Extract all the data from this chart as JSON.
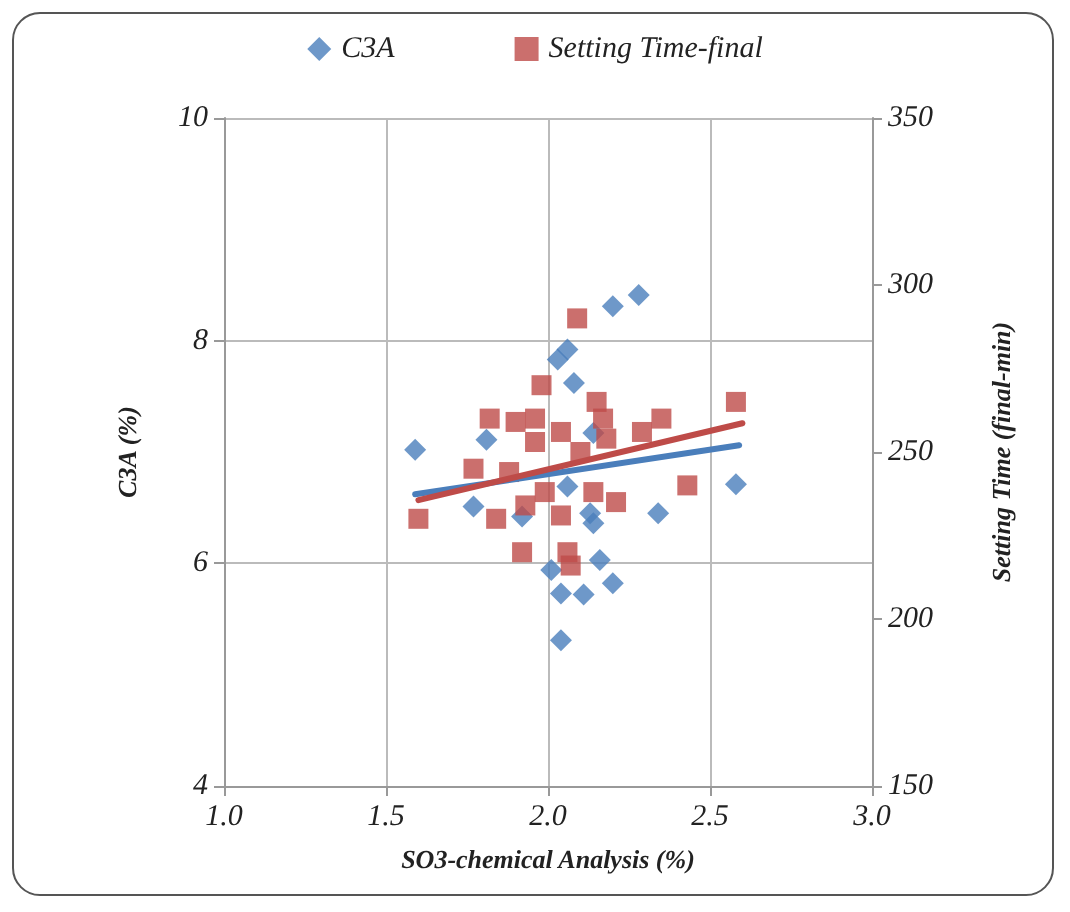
{
  "chart_data": {
    "type": "scatter",
    "xlabel": "SO3-chemical Analysis (%)",
    "ylabel": "C3A (%)",
    "y2label": "Setting Time (final-min)",
    "xlim": [
      1,
      3
    ],
    "xticks": [
      {
        "value": 1,
        "label": "1.0"
      },
      {
        "value": 1.5,
        "label": "1.5"
      },
      {
        "value": 2,
        "label": "2.0"
      },
      {
        "value": 2.5,
        "label": "2.5"
      },
      {
        "value": 3,
        "label": "3.0"
      }
    ],
    "ylim": [
      4,
      10
    ],
    "yticks": [
      4,
      6,
      8,
      10
    ],
    "y2lim": [
      150,
      350
    ],
    "y2ticks": [
      150,
      200,
      250,
      300,
      350
    ],
    "grid": true,
    "legend": "top",
    "series": [
      {
        "name": "C3A",
        "marker": "diamond",
        "color": "#4a7ebb",
        "x": [
          1.59,
          1.77,
          1.81,
          1.92,
          2.01,
          2.04,
          2.04,
          2.11,
          2.16,
          2.2,
          2.14,
          2.13,
          2.34,
          2.58,
          2.03,
          2.06,
          2.08,
          2.2,
          2.28,
          2.06,
          2.14
        ],
        "values": [
          7.02,
          6.51,
          7.11,
          6.42,
          5.94,
          5.73,
          5.31,
          5.72,
          6.03,
          5.82,
          6.36,
          6.45,
          6.45,
          6.71,
          7.83,
          7.92,
          7.62,
          8.31,
          8.41,
          6.69,
          7.17
        ]
      },
      {
        "name": "Setting Time-final",
        "marker": "square",
        "axis": "y2",
        "color": "#be4b48",
        "x": [
          1.6,
          1.77,
          1.82,
          1.84,
          1.92,
          1.9,
          1.96,
          1.98,
          1.96,
          1.99,
          2.04,
          2.04,
          2.06,
          2.07,
          2.09,
          2.1,
          2.14,
          2.15,
          2.17,
          2.18,
          2.21,
          2.29,
          2.35,
          2.43,
          2.58,
          1.93,
          1.88
        ],
        "values": [
          230,
          245,
          260,
          230,
          220,
          259,
          260,
          270,
          253,
          238,
          256,
          231,
          220,
          216,
          290,
          250,
          238,
          265,
          260,
          254,
          235,
          256,
          260,
          240,
          265,
          234,
          244
        ]
      },
      {
        "type": "line",
        "marker": "none",
        "line_style": "solid",
        "color": "#4a7ebb",
        "x": [
          1.59,
          2.59
        ],
        "values": [
          6.62,
          7.06
        ]
      },
      {
        "type": "line",
        "marker": "none",
        "line_style": "solid",
        "axis": "y2",
        "color": "#be4b48",
        "x": [
          1.6,
          2.6
        ],
        "values": [
          235.6,
          258.6
        ]
      }
    ]
  }
}
